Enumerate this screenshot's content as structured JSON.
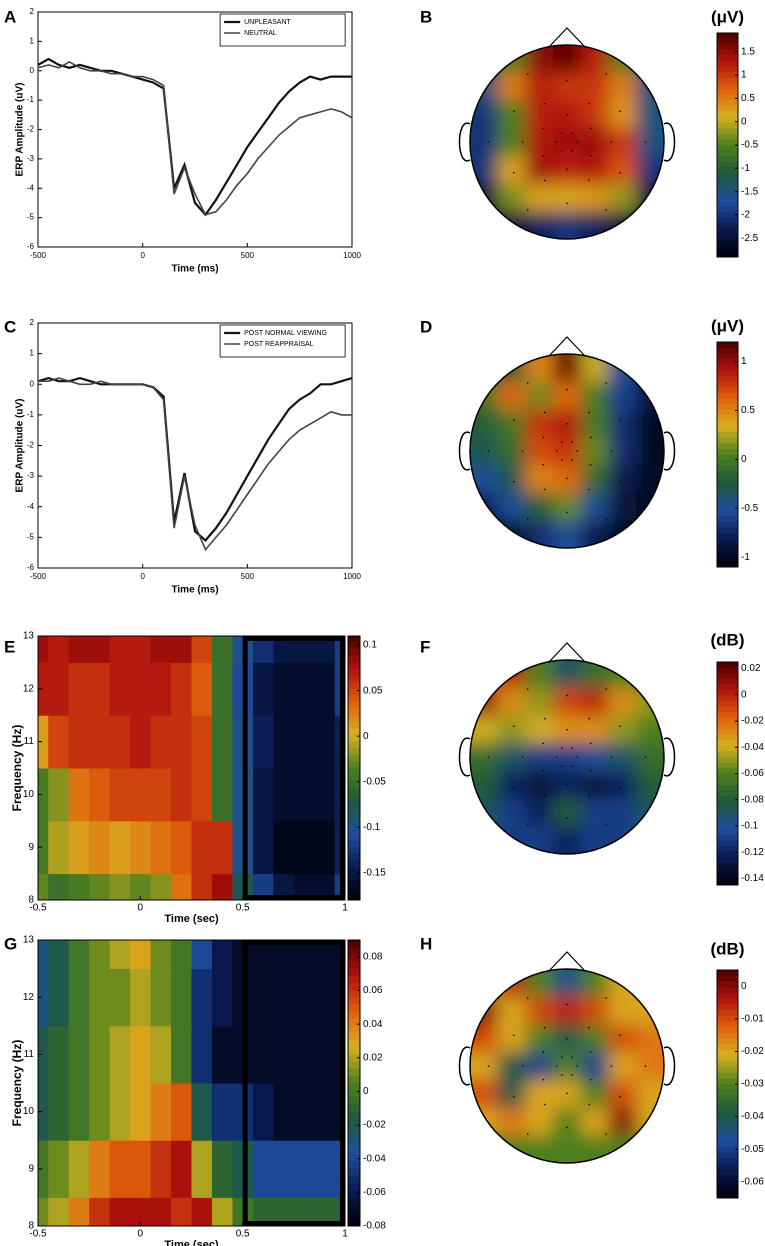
{
  "colormap": [
    "#000008",
    "#0a1a50",
    "#1e4fa0",
    "#1f5a3a",
    "#4e7f1e",
    "#d8b020",
    "#e0600c",
    "#b0120e",
    "#4a0000"
  ],
  "chart_data": [
    {
      "type": "line",
      "panel": "A",
      "xlabel": "Time (ms)",
      "ylabel": "ERP Amplitude (uV)",
      "xlim": [
        -500,
        1000
      ],
      "xticks": [
        -500,
        0,
        500,
        1000
      ],
      "ylim": [
        -6,
        2
      ],
      "yticks": [
        -6,
        -5,
        -4,
        -3,
        -2,
        -1,
        0,
        1,
        2
      ],
      "x": [
        -500,
        -450,
        -400,
        -350,
        -300,
        -250,
        -200,
        -150,
        -100,
        -50,
        0,
        50,
        100,
        150,
        200,
        250,
        300,
        350,
        400,
        450,
        500,
        550,
        600,
        650,
        700,
        750,
        800,
        850,
        900,
        950,
        1000
      ],
      "series": [
        {
          "name": "UNPLEASANT",
          "color": "#111111",
          "width": 2.2,
          "values": [
            0.2,
            0.4,
            0.2,
            0.1,
            0.2,
            0.1,
            0,
            0,
            -0.1,
            -0.2,
            -0.3,
            -0.4,
            -0.6,
            -4.0,
            -3.2,
            -4.5,
            -4.9,
            -4.4,
            -3.8,
            -3.2,
            -2.6,
            -2.1,
            -1.6,
            -1.1,
            -0.7,
            -0.4,
            -0.2,
            -0.3,
            -0.2,
            -0.2,
            -0.2
          ]
        },
        {
          "name": "NEUTRAL",
          "color": "#444444",
          "width": 1.6,
          "values": [
            0.1,
            0.2,
            0.1,
            0.3,
            0.1,
            0,
            0,
            -0.1,
            -0.1,
            -0.2,
            -0.2,
            -0.3,
            -0.5,
            -4.2,
            -3.3,
            -4.2,
            -4.9,
            -4.8,
            -4.4,
            -3.9,
            -3.5,
            -3.0,
            -2.6,
            -2.2,
            -1.9,
            -1.6,
            -1.5,
            -1.4,
            -1.3,
            -1.4,
            -1.6
          ]
        }
      ]
    },
    {
      "type": "topomap",
      "panel": "B",
      "colorbar_label": "(μV)",
      "clim": [
        -2.9,
        1.9
      ],
      "cticks": [
        1.5,
        1,
        0.5,
        0,
        -0.5,
        -1,
        -1.5,
        -2,
        -2.5
      ],
      "values": [
        [
          -1,
          -0.5,
          1.5,
          1.8,
          1.2,
          -0.5,
          -1
        ],
        [
          -1.5,
          0.5,
          1.2,
          1.0,
          1.0,
          0.5,
          -1.5
        ],
        [
          -2,
          -0.5,
          1.2,
          1.3,
          1.0,
          0.3,
          -1.5
        ],
        [
          -2,
          -0.5,
          1.3,
          1.4,
          1.4,
          1.0,
          -1.5
        ],
        [
          -2,
          0.2,
          1.4,
          1.2,
          1.3,
          0.8,
          -2
        ],
        [
          -2.5,
          -0.3,
          0.2,
          0.2,
          0.3,
          -0.2,
          -2.5
        ],
        [
          -2.8,
          -2.5,
          -2.2,
          -2.0,
          -2.2,
          -2.5,
          -2.8
        ]
      ]
    },
    {
      "type": "line",
      "panel": "C",
      "xlabel": "Time (ms)",
      "ylabel": "ERP Amplitude (uV)",
      "xlim": [
        -500,
        1000
      ],
      "xticks": [
        -500,
        0,
        500,
        1000
      ],
      "ylim": [
        -6,
        2
      ],
      "yticks": [
        -6,
        -5,
        -4,
        -3,
        -2,
        -1,
        0,
        1,
        2
      ],
      "x": [
        -500,
        -450,
        -400,
        -350,
        -300,
        -250,
        -200,
        -150,
        -100,
        -50,
        0,
        50,
        100,
        150,
        200,
        250,
        300,
        350,
        400,
        450,
        500,
        550,
        600,
        650,
        700,
        750,
        800,
        850,
        900,
        950,
        1000
      ],
      "series": [
        {
          "name": "POST NORMAL VIEWING",
          "color": "#111111",
          "width": 2.2,
          "values": [
            0.1,
            0.2,
            0.1,
            0.1,
            0.2,
            0.1,
            0,
            0,
            0,
            0,
            0,
            -0.1,
            -0.4,
            -4.5,
            -2.9,
            -4.8,
            -5.1,
            -4.7,
            -4.2,
            -3.6,
            -3.0,
            -2.4,
            -1.8,
            -1.3,
            -0.8,
            -0.5,
            -0.3,
            0,
            0,
            0.1,
            0.2
          ]
        },
        {
          "name": "POST REAPPRAISAL",
          "color": "#444444",
          "width": 1.6,
          "values": [
            0.1,
            0.1,
            0.2,
            0.1,
            0,
            0,
            0.1,
            0,
            0,
            0,
            0,
            -0.1,
            -0.5,
            -4.7,
            -3.0,
            -4.6,
            -5.4,
            -5.0,
            -4.6,
            -4.1,
            -3.6,
            -3.1,
            -2.6,
            -2.2,
            -1.8,
            -1.5,
            -1.3,
            -1.1,
            -0.9,
            -1.0,
            -1.0
          ]
        }
      ]
    },
    {
      "type": "topomap",
      "panel": "D",
      "colorbar_label": "(μV)",
      "clim": [
        -1.1,
        1.2
      ],
      "cticks": [
        1,
        0.5,
        0,
        -0.5,
        -1
      ],
      "values": [
        [
          -0.3,
          -0.2,
          0.5,
          1.1,
          0.3,
          -0.5,
          -0.8
        ],
        [
          0,
          0.6,
          0.1,
          0.6,
          0,
          -0.6,
          -0.9
        ],
        [
          -0.2,
          0,
          0.8,
          0.9,
          0,
          -0.7,
          -1
        ],
        [
          -0.3,
          -0.1,
          0.7,
          0.8,
          0.1,
          -0.7,
          -1
        ],
        [
          -0.5,
          -0.3,
          0.5,
          0.6,
          -0.1,
          -0.8,
          -1
        ],
        [
          -0.8,
          -0.5,
          -0.2,
          0.1,
          -0.5,
          -0.9,
          -1
        ],
        [
          -1,
          -1,
          -0.7,
          -0.5,
          -0.8,
          -1,
          -1
        ]
      ]
    },
    {
      "type": "heatmap",
      "panel": "E",
      "xlabel": "Time (sec)",
      "ylabel": "Frequency (Hz)",
      "xlim": [
        -0.5,
        1
      ],
      "xticks": [
        -0.5,
        0,
        0.5,
        1
      ],
      "ylim": [
        8,
        13
      ],
      "yticks": [
        8,
        9,
        10,
        11,
        12,
        13
      ],
      "highlight_x": [
        0.5,
        1
      ],
      "x": [
        -0.5,
        -0.4,
        -0.3,
        -0.2,
        -0.1,
        0,
        0.1,
        0.2,
        0.3,
        0.4,
        0.5,
        0.6,
        0.7,
        0.8,
        0.9,
        1
      ],
      "y": [
        8,
        9,
        10,
        11,
        12,
        13
      ],
      "clim": [
        -0.18,
        0.11
      ],
      "cticks": [
        0.1,
        0.05,
        0,
        -0.05,
        -0.1,
        -0.15
      ],
      "values": [
        [
          -0.03,
          -0.05,
          -0.04,
          -0.03,
          -0.02,
          -0.03,
          -0.02,
          0.03,
          0.06,
          0.08,
          -0.08,
          -0.12,
          -0.15,
          -0.16,
          -0.16,
          -0.12
        ],
        [
          -0.04,
          -0.01,
          0.01,
          0.02,
          0.01,
          0.02,
          0.03,
          0.04,
          0.06,
          0.06,
          -0.1,
          -0.15,
          -0.17,
          -0.17,
          -0.17,
          -0.14
        ],
        [
          -0.04,
          -0.02,
          0.03,
          0.04,
          0.05,
          0.05,
          0.05,
          0.06,
          0.05,
          -0.05,
          -0.1,
          -0.15,
          -0.16,
          -0.16,
          -0.16,
          -0.14
        ],
        [
          0.01,
          0.05,
          0.06,
          0.06,
          0.06,
          0.07,
          0.06,
          0.06,
          0.05,
          -0.05,
          -0.1,
          -0.14,
          -0.16,
          -0.16,
          -0.16,
          -0.14
        ],
        [
          0.07,
          0.07,
          0.06,
          0.06,
          0.07,
          0.07,
          0.07,
          0.06,
          0.04,
          -0.05,
          -0.11,
          -0.15,
          -0.16,
          -0.16,
          -0.16,
          -0.12
        ],
        [
          0.08,
          0.07,
          0.08,
          0.08,
          0.07,
          0.07,
          0.08,
          0.08,
          0.05,
          -0.05,
          -0.1,
          -0.13,
          -0.15,
          -0.15,
          -0.15,
          -0.12
        ]
      ]
    },
    {
      "type": "topomap",
      "panel": "F",
      "colorbar_label": "(dB)",
      "clim": [
        -0.145,
        0.025
      ],
      "cticks": [
        0.02,
        0,
        -0.02,
        -0.04,
        -0.06,
        -0.08,
        -0.1,
        -0.12,
        -0.14
      ],
      "values": [
        [
          -0.02,
          0.0,
          -0.06,
          -0.09,
          -0.07,
          -0.06,
          -0.06
        ],
        [
          0.01,
          -0.03,
          -0.05,
          -0.01,
          0.0,
          -0.03,
          -0.05
        ],
        [
          -0.04,
          -0.05,
          -0.04,
          -0.03,
          -0.03,
          -0.05,
          -0.06
        ],
        [
          -0.07,
          -0.09,
          -0.11,
          -0.11,
          -0.1,
          -0.09,
          -0.07
        ],
        [
          -0.08,
          -0.12,
          -0.13,
          -0.12,
          -0.13,
          -0.12,
          -0.08
        ],
        [
          -0.09,
          -0.11,
          -0.12,
          -0.08,
          -0.11,
          -0.11,
          -0.09
        ],
        [
          -0.1,
          -0.11,
          -0.11,
          -0.12,
          -0.11,
          -0.11,
          -0.1
        ]
      ]
    },
    {
      "type": "heatmap",
      "panel": "G",
      "xlabel": "Time (sec)",
      "ylabel": "Frequency (Hz)",
      "xlim": [
        -0.5,
        1
      ],
      "xticks": [
        -0.5,
        0,
        0.5,
        1
      ],
      "ylim": [
        8,
        13
      ],
      "yticks": [
        8,
        9,
        10,
        11,
        12,
        13
      ],
      "highlight_x": [
        0.5,
        1
      ],
      "x": [
        -0.5,
        -0.4,
        -0.3,
        -0.2,
        -0.1,
        0,
        0.1,
        0.2,
        0.3,
        0.4,
        0.5,
        0.6,
        0.7,
        0.8,
        0.9,
        1
      ],
      "y": [
        8,
        9,
        10,
        11,
        12,
        13
      ],
      "clim": [
        -0.08,
        0.09
      ],
      "cticks": [
        0.08,
        0.06,
        0.04,
        0.02,
        0,
        -0.02,
        -0.04,
        -0.06,
        -0.08
      ],
      "values": [
        [
          0.01,
          0.02,
          0.04,
          0.06,
          0.07,
          0.07,
          0.07,
          0.06,
          0.07,
          0.02,
          0,
          -0.01,
          -0.01,
          -0.01,
          -0.01,
          -0.01
        ],
        [
          0,
          0.01,
          0.02,
          0.04,
          0.05,
          0.05,
          0.06,
          0.07,
          0.02,
          -0.01,
          -0.02,
          -0.04,
          -0.04,
          -0.04,
          -0.04,
          -0.04
        ],
        [
          -0.02,
          -0.01,
          0,
          0.01,
          0.02,
          0.03,
          0.04,
          0.05,
          -0.02,
          -0.05,
          -0.05,
          -0.06,
          -0.07,
          -0.07,
          -0.07,
          -0.07
        ],
        [
          -0.02,
          -0.01,
          0,
          0.01,
          0.02,
          0.03,
          0.02,
          0.0,
          -0.05,
          -0.07,
          -0.07,
          -0.07,
          -0.07,
          -0.07,
          -0.07,
          -0.07
        ],
        [
          -0.03,
          -0.02,
          0,
          0.01,
          0.01,
          0.02,
          0.01,
          0,
          -0.05,
          -0.06,
          -0.07,
          -0.07,
          -0.07,
          -0.07,
          -0.07,
          -0.07
        ],
        [
          -0.03,
          -0.02,
          0,
          0.01,
          0.02,
          0.03,
          0.01,
          0,
          -0.04,
          -0.06,
          -0.07,
          -0.07,
          -0.07,
          -0.07,
          -0.07,
          -0.07
        ]
      ]
    },
    {
      "type": "topomap",
      "panel": "H",
      "colorbar_label": "(dB)",
      "clim": [
        -0.065,
        0.005
      ],
      "cticks": [
        0,
        -0.01,
        -0.02,
        -0.03,
        -0.04,
        -0.05,
        -0.06
      ],
      "values": [
        [
          -0.02,
          -0.005,
          -0.03,
          -0.045,
          -0.03,
          -0.02,
          -0.02
        ],
        [
          0,
          -0.02,
          -0.01,
          -0.005,
          -0.01,
          -0.02,
          -0.02
        ],
        [
          -0.01,
          -0.02,
          -0.03,
          -0.04,
          -0.03,
          -0.01,
          -0.015
        ],
        [
          -0.02,
          -0.04,
          -0.05,
          -0.03,
          -0.05,
          -0.02,
          -0.015
        ],
        [
          -0.01,
          -0.04,
          -0.02,
          -0.02,
          -0.03,
          -0.01,
          -0.02
        ],
        [
          -0.02,
          -0.015,
          -0.02,
          -0.03,
          -0.02,
          0,
          -0.02
        ],
        [
          -0.03,
          -0.03,
          -0.03,
          -0.03,
          -0.03,
          -0.03,
          -0.03
        ]
      ]
    }
  ]
}
